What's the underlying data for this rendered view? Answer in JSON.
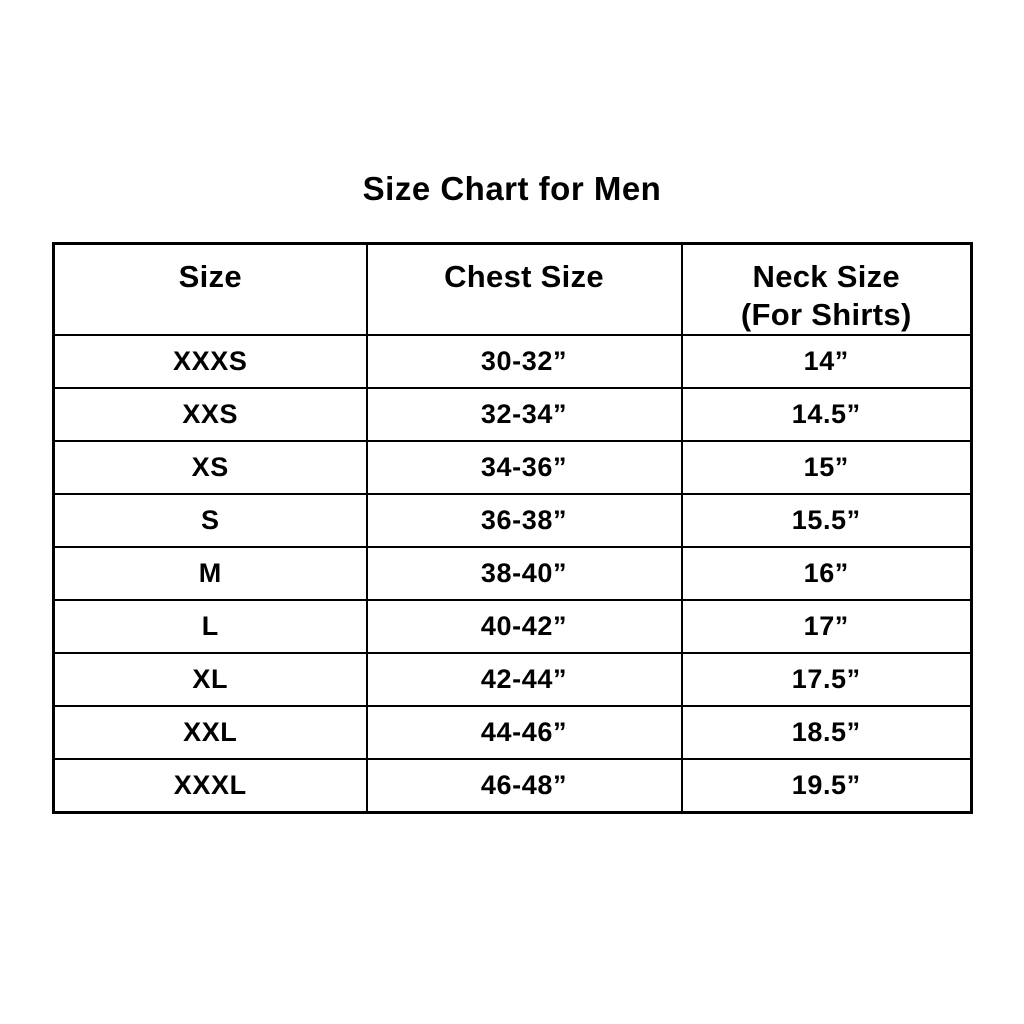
{
  "title": "Size Chart for Men",
  "colors": {
    "background": "#ffffff",
    "text": "#000000",
    "border": "#000000"
  },
  "table": {
    "headers": [
      {
        "line1": "Size",
        "line2": ""
      },
      {
        "line1": "Chest Size",
        "line2": ""
      },
      {
        "line1": "Neck Size",
        "line2": "(For Shirts)"
      }
    ],
    "rows": [
      [
        "XXXS",
        "30-32”",
        "14”"
      ],
      [
        "XXS",
        "32-34”",
        "14.5”"
      ],
      [
        "XS",
        "34-36”",
        "15”"
      ],
      [
        "S",
        "36-38”",
        "15.5”"
      ],
      [
        "M",
        "38-40”",
        "16”"
      ],
      [
        "L",
        "40-42”",
        "17”"
      ],
      [
        "XL",
        "42-44”",
        "17.5”"
      ],
      [
        "XXL",
        "44-46”",
        "18.5”"
      ],
      [
        "XXXL",
        "46-48”",
        "19.5”"
      ]
    ]
  },
  "chart_data": {
    "type": "table",
    "title": "Size Chart for Men",
    "columns": [
      "Size",
      "Chest Size",
      "Neck Size (For Shirts)"
    ],
    "rows": [
      {
        "size": "XXXS",
        "chest_size": "30-32\"",
        "neck_size": "14\""
      },
      {
        "size": "XXS",
        "chest_size": "32-34\"",
        "neck_size": "14.5\""
      },
      {
        "size": "XS",
        "chest_size": "34-36\"",
        "neck_size": "15\""
      },
      {
        "size": "S",
        "chest_size": "36-38\"",
        "neck_size": "15.5\""
      },
      {
        "size": "M",
        "chest_size": "38-40\"",
        "neck_size": "16\""
      },
      {
        "size": "L",
        "chest_size": "40-42\"",
        "neck_size": "17\""
      },
      {
        "size": "XL",
        "chest_size": "42-44\"",
        "neck_size": "17.5\""
      },
      {
        "size": "XXL",
        "chest_size": "44-46\"",
        "neck_size": "18.5\""
      },
      {
        "size": "XXXL",
        "chest_size": "46-48\"",
        "neck_size": "19.5\""
      }
    ]
  }
}
